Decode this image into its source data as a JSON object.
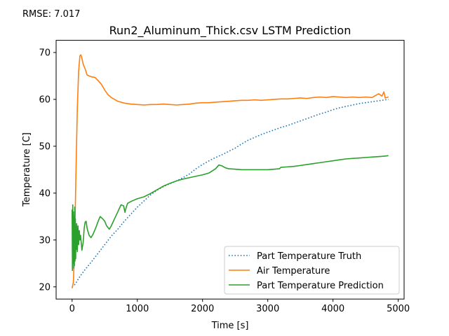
{
  "annotation": {
    "rmse_text": "RMSE: 7.017"
  },
  "chart_data": {
    "type": "line",
    "title": "Run2_Aluminum_Thick.csv LSTM Prediction",
    "xlabel": "Time [s]",
    "ylabel": "Temperature [C]",
    "xlim": [
      -245,
      5090
    ],
    "ylim": [
      17.4,
      72.6
    ],
    "xticks": [
      0,
      1000,
      2000,
      3000,
      4000,
      5000
    ],
    "yticks": [
      20,
      30,
      40,
      50,
      60,
      70
    ],
    "grid": false,
    "legend_position": "lower right",
    "series": [
      {
        "name": "Part Temperature Truth",
        "color": "#1f77b4",
        "style": "dotted",
        "points": [
          [
            0,
            20.0
          ],
          [
            50,
            20.6
          ],
          [
            100,
            21.8
          ],
          [
            150,
            22.8
          ],
          [
            200,
            23.7
          ],
          [
            300,
            25.4
          ],
          [
            400,
            27.2
          ],
          [
            500,
            29.0
          ],
          [
            600,
            30.8
          ],
          [
            700,
            32.3
          ],
          [
            800,
            34.0
          ],
          [
            900,
            35.5
          ],
          [
            1000,
            37.0
          ],
          [
            1100,
            38.3
          ],
          [
            1200,
            39.6
          ],
          [
            1300,
            40.6
          ],
          [
            1400,
            41.4
          ],
          [
            1500,
            42.0
          ],
          [
            1600,
            42.6
          ],
          [
            1700,
            43.3
          ],
          [
            1800,
            44.1
          ],
          [
            1900,
            45.2
          ],
          [
            2000,
            46.1
          ],
          [
            2100,
            46.9
          ],
          [
            2200,
            47.6
          ],
          [
            2300,
            48.2
          ],
          [
            2400,
            48.9
          ],
          [
            2500,
            49.6
          ],
          [
            2600,
            50.5
          ],
          [
            2700,
            51.3
          ],
          [
            2800,
            51.9
          ],
          [
            2900,
            52.5
          ],
          [
            3000,
            53.0
          ],
          [
            3100,
            53.5
          ],
          [
            3200,
            54.0
          ],
          [
            3300,
            54.4
          ],
          [
            3400,
            54.9
          ],
          [
            3500,
            55.4
          ],
          [
            3600,
            55.9
          ],
          [
            3700,
            56.4
          ],
          [
            3800,
            56.9
          ],
          [
            3900,
            57.3
          ],
          [
            4000,
            57.8
          ],
          [
            4100,
            58.2
          ],
          [
            4200,
            58.5
          ],
          [
            4300,
            58.8
          ],
          [
            4400,
            59.1
          ],
          [
            4500,
            59.3
          ],
          [
            4600,
            59.5
          ],
          [
            4700,
            59.7
          ],
          [
            4800,
            59.9
          ],
          [
            4850,
            60.0
          ]
        ]
      },
      {
        "name": "Air Temperature",
        "color": "#ff7f0e",
        "style": "solid",
        "points": [
          [
            0,
            19.7
          ],
          [
            20,
            21.0
          ],
          [
            40,
            30.0
          ],
          [
            60,
            45.0
          ],
          [
            80,
            58.0
          ],
          [
            100,
            66.0
          ],
          [
            120,
            69.3
          ],
          [
            135,
            69.5
          ],
          [
            150,
            68.8
          ],
          [
            170,
            67.5
          ],
          [
            200,
            66.5
          ],
          [
            230,
            65.2
          ],
          [
            260,
            65.0
          ],
          [
            300,
            64.8
          ],
          [
            350,
            64.7
          ],
          [
            400,
            64.0
          ],
          [
            450,
            63.2
          ],
          [
            500,
            62.0
          ],
          [
            550,
            61.0
          ],
          [
            600,
            60.4
          ],
          [
            650,
            60.0
          ],
          [
            700,
            59.6
          ],
          [
            800,
            59.2
          ],
          [
            900,
            59.0
          ],
          [
            1000,
            58.9
          ],
          [
            1100,
            58.8
          ],
          [
            1200,
            58.9
          ],
          [
            1300,
            58.9
          ],
          [
            1400,
            59.0
          ],
          [
            1500,
            58.9
          ],
          [
            1600,
            58.8
          ],
          [
            1700,
            58.9
          ],
          [
            1800,
            59.0
          ],
          [
            1900,
            59.2
          ],
          [
            2000,
            59.3
          ],
          [
            2100,
            59.3
          ],
          [
            2200,
            59.4
          ],
          [
            2300,
            59.5
          ],
          [
            2400,
            59.6
          ],
          [
            2500,
            59.7
          ],
          [
            2600,
            59.8
          ],
          [
            2700,
            59.8
          ],
          [
            2800,
            59.9
          ],
          [
            2900,
            59.8
          ],
          [
            3000,
            59.9
          ],
          [
            3100,
            60.0
          ],
          [
            3200,
            60.1
          ],
          [
            3300,
            60.1
          ],
          [
            3400,
            60.2
          ],
          [
            3500,
            60.3
          ],
          [
            3600,
            60.2
          ],
          [
            3700,
            60.4
          ],
          [
            3800,
            60.5
          ],
          [
            3900,
            60.4
          ],
          [
            4000,
            60.6
          ],
          [
            4100,
            60.5
          ],
          [
            4200,
            60.4
          ],
          [
            4300,
            60.5
          ],
          [
            4400,
            60.4
          ],
          [
            4500,
            60.5
          ],
          [
            4600,
            60.4
          ],
          [
            4650,
            60.8
          ],
          [
            4700,
            61.2
          ],
          [
            4750,
            60.7
          ],
          [
            4780,
            61.6
          ],
          [
            4800,
            60.3
          ],
          [
            4850,
            60.5
          ]
        ]
      },
      {
        "name": "Part Temperature Prediction",
        "color": "#2ca02c",
        "style": "solid",
        "points": [
          [
            0,
            36.5
          ],
          [
            5,
            23.5
          ],
          [
            10,
            37.5
          ],
          [
            15,
            25.0
          ],
          [
            20,
            36.0
          ],
          [
            25,
            24.0
          ],
          [
            30,
            35.0
          ],
          [
            35,
            24.5
          ],
          [
            40,
            37.0
          ],
          [
            45,
            25.5
          ],
          [
            50,
            34.5
          ],
          [
            55,
            26.0
          ],
          [
            60,
            33.0
          ],
          [
            65,
            28.0
          ],
          [
            70,
            33.5
          ],
          [
            80,
            27.5
          ],
          [
            90,
            33.0
          ],
          [
            100,
            29.0
          ],
          [
            110,
            32.0
          ],
          [
            120,
            30.0
          ],
          [
            130,
            31.0
          ],
          [
            150,
            27.8
          ],
          [
            170,
            29.5
          ],
          [
            185,
            32.5
          ],
          [
            200,
            33.8
          ],
          [
            215,
            34.0
          ],
          [
            230,
            32.5
          ],
          [
            260,
            31.0
          ],
          [
            290,
            30.5
          ],
          [
            320,
            31.2
          ],
          [
            360,
            32.5
          ],
          [
            400,
            34.0
          ],
          [
            430,
            35.0
          ],
          [
            470,
            34.5
          ],
          [
            500,
            34.0
          ],
          [
            530,
            33.0
          ],
          [
            570,
            32.3
          ],
          [
            600,
            33.0
          ],
          [
            650,
            34.5
          ],
          [
            700,
            36.0
          ],
          [
            750,
            37.5
          ],
          [
            790,
            37.3
          ],
          [
            810,
            35.9
          ],
          [
            830,
            37.0
          ],
          [
            850,
            37.8
          ],
          [
            900,
            38.2
          ],
          [
            1000,
            38.8
          ],
          [
            1100,
            39.2
          ],
          [
            1200,
            39.9
          ],
          [
            1300,
            40.7
          ],
          [
            1400,
            41.5
          ],
          [
            1500,
            42.1
          ],
          [
            1600,
            42.6
          ],
          [
            1700,
            43.0
          ],
          [
            1800,
            43.3
          ],
          [
            1900,
            43.6
          ],
          [
            2000,
            43.9
          ],
          [
            2100,
            44.3
          ],
          [
            2200,
            45.2
          ],
          [
            2250,
            46.0
          ],
          [
            2300,
            45.8
          ],
          [
            2350,
            45.4
          ],
          [
            2400,
            45.2
          ],
          [
            2500,
            45.1
          ],
          [
            2600,
            45.0
          ],
          [
            2700,
            45.0
          ],
          [
            2800,
            45.0
          ],
          [
            2900,
            45.0
          ],
          [
            3000,
            45.0
          ],
          [
            3100,
            45.1
          ],
          [
            3180,
            45.2
          ],
          [
            3200,
            45.5
          ],
          [
            3300,
            45.6
          ],
          [
            3400,
            45.7
          ],
          [
            3500,
            45.9
          ],
          [
            3600,
            46.1
          ],
          [
            3700,
            46.3
          ],
          [
            3800,
            46.5
          ],
          [
            3900,
            46.7
          ],
          [
            4000,
            46.9
          ],
          [
            4100,
            47.1
          ],
          [
            4200,
            47.3
          ],
          [
            4300,
            47.4
          ],
          [
            4400,
            47.5
          ],
          [
            4500,
            47.6
          ],
          [
            4600,
            47.7
          ],
          [
            4700,
            47.8
          ],
          [
            4800,
            47.9
          ],
          [
            4850,
            48.0
          ]
        ]
      }
    ]
  }
}
